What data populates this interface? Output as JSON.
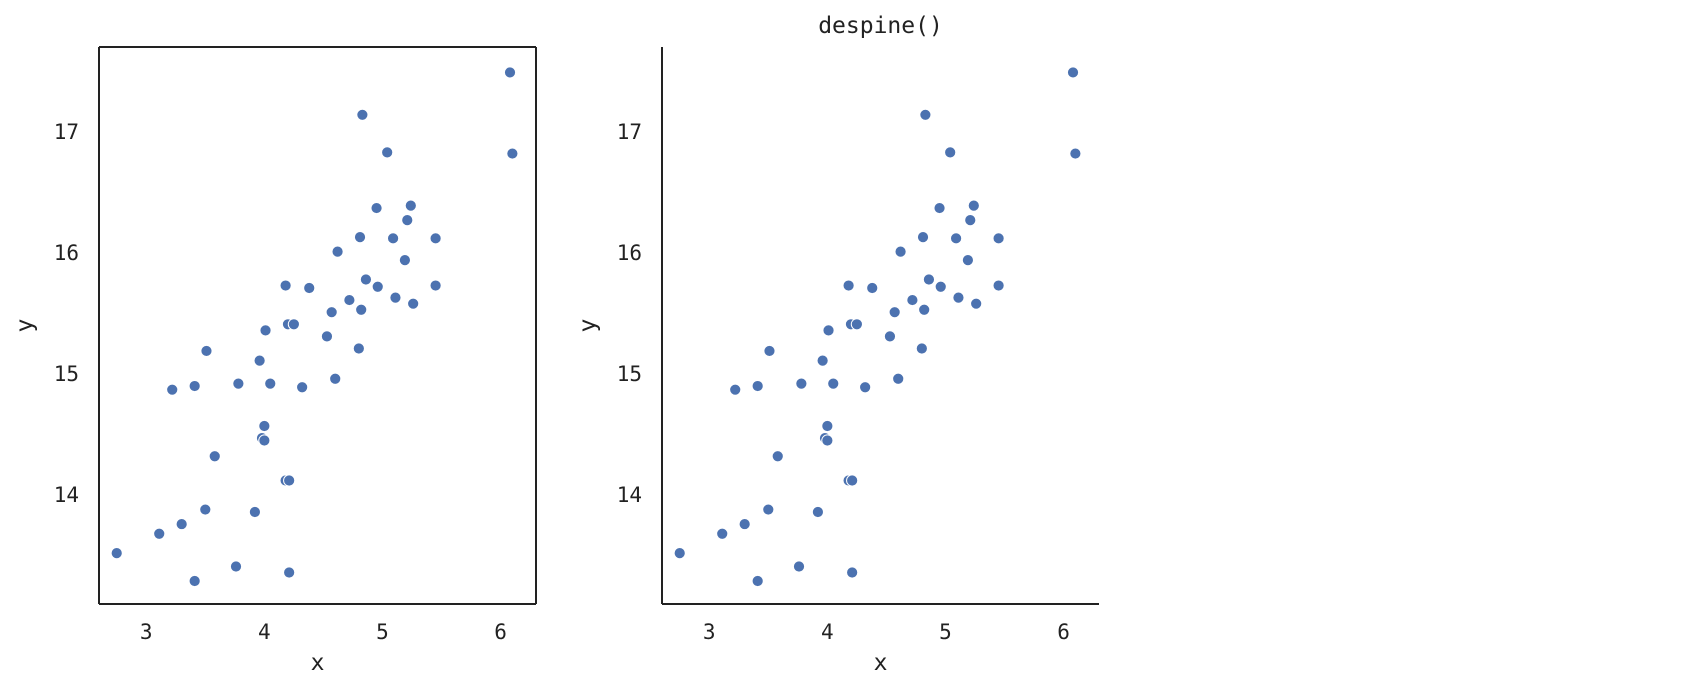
{
  "chart_data": [
    {
      "type": "scatter",
      "title": "",
      "xlabel": "x",
      "ylabel": "y",
      "xlim": [
        2.6,
        6.3
      ],
      "ylim": [
        13.1,
        17.7
      ],
      "xticks": [
        3,
        4,
        5,
        6
      ],
      "yticks": [
        14,
        15,
        16,
        17
      ],
      "spines": {
        "top": true,
        "right": true,
        "left": true,
        "bottom": true
      },
      "grid": false,
      "marker_color": "#4c72b0",
      "points": [
        {
          "x": 2.75,
          "y": 13.52
        },
        {
          "x": 3.11,
          "y": 13.68
        },
        {
          "x": 3.3,
          "y": 13.76
        },
        {
          "x": 3.41,
          "y": 13.29
        },
        {
          "x": 3.5,
          "y": 13.88
        },
        {
          "x": 3.58,
          "y": 14.32
        },
        {
          "x": 3.22,
          "y": 14.87
        },
        {
          "x": 3.41,
          "y": 14.9
        },
        {
          "x": 3.51,
          "y": 15.19
        },
        {
          "x": 3.76,
          "y": 13.41
        },
        {
          "x": 3.78,
          "y": 14.92
        },
        {
          "x": 3.92,
          "y": 13.86
        },
        {
          "x": 3.96,
          "y": 15.11
        },
        {
          "x": 3.98,
          "y": 14.47
        },
        {
          "x": 4.0,
          "y": 14.45
        },
        {
          "x": 4.0,
          "y": 14.57
        },
        {
          "x": 4.01,
          "y": 15.36
        },
        {
          "x": 4.05,
          "y": 14.92
        },
        {
          "x": 4.18,
          "y": 15.73
        },
        {
          "x": 4.18,
          "y": 14.12
        },
        {
          "x": 4.21,
          "y": 14.12
        },
        {
          "x": 4.21,
          "y": 13.36
        },
        {
          "x": 4.2,
          "y": 15.41
        },
        {
          "x": 4.25,
          "y": 15.41
        },
        {
          "x": 4.32,
          "y": 14.89
        },
        {
          "x": 4.38,
          "y": 15.71
        },
        {
          "x": 4.53,
          "y": 15.31
        },
        {
          "x": 4.57,
          "y": 15.51
        },
        {
          "x": 4.6,
          "y": 14.96
        },
        {
          "x": 4.62,
          "y": 16.01
        },
        {
          "x": 4.72,
          "y": 15.61
        },
        {
          "x": 4.8,
          "y": 15.21
        },
        {
          "x": 4.81,
          "y": 16.13
        },
        {
          "x": 4.82,
          "y": 15.53
        },
        {
          "x": 4.83,
          "y": 17.14
        },
        {
          "x": 4.86,
          "y": 15.78
        },
        {
          "x": 4.95,
          "y": 16.37
        },
        {
          "x": 4.96,
          "y": 15.72
        },
        {
          "x": 5.04,
          "y": 16.83
        },
        {
          "x": 5.09,
          "y": 16.12
        },
        {
          "x": 5.11,
          "y": 15.63
        },
        {
          "x": 5.19,
          "y": 15.94
        },
        {
          "x": 5.21,
          "y": 16.27
        },
        {
          "x": 5.24,
          "y": 16.39
        },
        {
          "x": 5.26,
          "y": 15.58
        },
        {
          "x": 5.45,
          "y": 16.12
        },
        {
          "x": 5.45,
          "y": 15.73
        },
        {
          "x": 6.08,
          "y": 17.49
        },
        {
          "x": 6.1,
          "y": 16.82
        }
      ]
    },
    {
      "type": "scatter",
      "title": "despine()",
      "xlabel": "x",
      "ylabel": "y",
      "xlim": [
        2.6,
        6.3
      ],
      "ylim": [
        13.1,
        17.7
      ],
      "xticks": [
        3,
        4,
        5,
        6
      ],
      "yticks": [
        14,
        15,
        16,
        17
      ],
      "spines": {
        "top": false,
        "right": false,
        "left": true,
        "bottom": true
      },
      "grid": false,
      "marker_color": "#4c72b0",
      "points": [
        {
          "x": 2.75,
          "y": 13.52
        },
        {
          "x": 3.11,
          "y": 13.68
        },
        {
          "x": 3.3,
          "y": 13.76
        },
        {
          "x": 3.41,
          "y": 13.29
        },
        {
          "x": 3.5,
          "y": 13.88
        },
        {
          "x": 3.58,
          "y": 14.32
        },
        {
          "x": 3.22,
          "y": 14.87
        },
        {
          "x": 3.41,
          "y": 14.9
        },
        {
          "x": 3.51,
          "y": 15.19
        },
        {
          "x": 3.76,
          "y": 13.41
        },
        {
          "x": 3.78,
          "y": 14.92
        },
        {
          "x": 3.92,
          "y": 13.86
        },
        {
          "x": 3.96,
          "y": 15.11
        },
        {
          "x": 3.98,
          "y": 14.47
        },
        {
          "x": 4.0,
          "y": 14.45
        },
        {
          "x": 4.0,
          "y": 14.57
        },
        {
          "x": 4.01,
          "y": 15.36
        },
        {
          "x": 4.05,
          "y": 14.92
        },
        {
          "x": 4.18,
          "y": 15.73
        },
        {
          "x": 4.18,
          "y": 14.12
        },
        {
          "x": 4.21,
          "y": 14.12
        },
        {
          "x": 4.21,
          "y": 13.36
        },
        {
          "x": 4.2,
          "y": 15.41
        },
        {
          "x": 4.25,
          "y": 15.41
        },
        {
          "x": 4.32,
          "y": 14.89
        },
        {
          "x": 4.38,
          "y": 15.71
        },
        {
          "x": 4.53,
          "y": 15.31
        },
        {
          "x": 4.57,
          "y": 15.51
        },
        {
          "x": 4.6,
          "y": 14.96
        },
        {
          "x": 4.62,
          "y": 16.01
        },
        {
          "x": 4.72,
          "y": 15.61
        },
        {
          "x": 4.8,
          "y": 15.21
        },
        {
          "x": 4.81,
          "y": 16.13
        },
        {
          "x": 4.82,
          "y": 15.53
        },
        {
          "x": 4.83,
          "y": 17.14
        },
        {
          "x": 4.86,
          "y": 15.78
        },
        {
          "x": 4.95,
          "y": 16.37
        },
        {
          "x": 4.96,
          "y": 15.72
        },
        {
          "x": 5.04,
          "y": 16.83
        },
        {
          "x": 5.09,
          "y": 16.12
        },
        {
          "x": 5.11,
          "y": 15.63
        },
        {
          "x": 5.19,
          "y": 15.94
        },
        {
          "x": 5.21,
          "y": 16.27
        },
        {
          "x": 5.24,
          "y": 16.39
        },
        {
          "x": 5.26,
          "y": 15.58
        },
        {
          "x": 5.45,
          "y": 16.12
        },
        {
          "x": 5.45,
          "y": 15.73
        },
        {
          "x": 6.08,
          "y": 17.49
        },
        {
          "x": 6.1,
          "y": 16.82
        }
      ]
    }
  ]
}
